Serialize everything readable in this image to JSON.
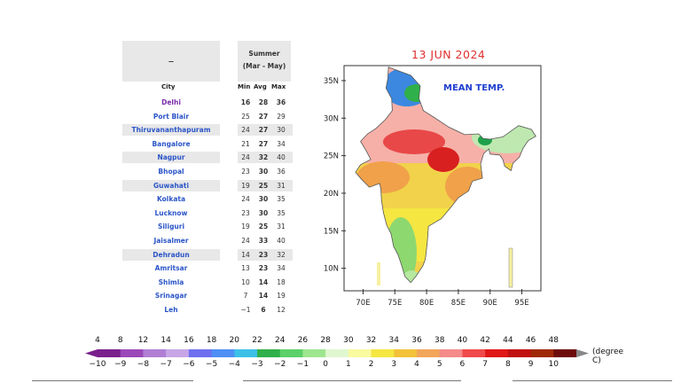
{
  "table": {
    "region_label": "–",
    "season_title": "Summer",
    "season_months": "(Mar - May)",
    "col_city": "City",
    "col_min": "Min",
    "col_avg": "Avg",
    "col_max": "Max",
    "rows": [
      {
        "city": "Delhi",
        "min": "16",
        "avg": "28",
        "max": "36"
      },
      {
        "city": "Port Blair",
        "min": "25",
        "avg": "27",
        "max": "29"
      },
      {
        "city": "Thiruvananthapuram",
        "min": "24",
        "avg": "27",
        "max": "30"
      },
      {
        "city": "Bangalore",
        "min": "21",
        "avg": "27",
        "max": "34"
      },
      {
        "city": "Nagpur",
        "min": "24",
        "avg": "32",
        "max": "40"
      },
      {
        "city": "Bhopal",
        "min": "23",
        "avg": "30",
        "max": "36"
      },
      {
        "city": "Guwahati",
        "min": "19",
        "avg": "25",
        "max": "31"
      },
      {
        "city": "Kolkata",
        "min": "24",
        "avg": "30",
        "max": "35"
      },
      {
        "city": "Lucknow",
        "min": "23",
        "avg": "30",
        "max": "35"
      },
      {
        "city": "Siliguri",
        "min": "19",
        "avg": "25",
        "max": "31"
      },
      {
        "city": "Jaisalmer",
        "min": "24",
        "avg": "33",
        "max": "40"
      },
      {
        "city": "Dehradun",
        "min": "14",
        "avg": "23",
        "max": "32"
      },
      {
        "city": "Amritsar",
        "min": "13",
        "avg": "23",
        "max": "34"
      },
      {
        "city": "Shimla",
        "min": "10",
        "avg": "14",
        "max": "18"
      },
      {
        "city": "Srinagar",
        "min": "7",
        "avg": "14",
        "max": "19"
      },
      {
        "city": "Leh",
        "min": "−1",
        "avg": "6",
        "max": "12"
      }
    ]
  },
  "map": {
    "date": "13 JUN 2024",
    "label": "MEAN TEMP.",
    "lat_labels": [
      "35N",
      "30N",
      "25N",
      "20N",
      "15N",
      "10N"
    ],
    "lon_labels": [
      "70E",
      "75E",
      "80E",
      "85E",
      "90E",
      "95E"
    ],
    "lon_range": [
      67,
      98
    ],
    "lat_range": [
      7,
      37
    ]
  },
  "colorbar": {
    "top_ticks": [
      "4",
      "8",
      "12",
      "14",
      "16",
      "18",
      "20",
      "22",
      "24",
      "26",
      "28",
      "30",
      "32",
      "34",
      "36",
      "38",
      "40",
      "42",
      "44",
      "46",
      "48"
    ],
    "bottom_ticks": [
      "−10",
      "−9",
      "−8",
      "−7",
      "−6",
      "−5",
      "−4",
      "−3",
      "−2",
      "−1",
      "0",
      "1",
      "2",
      "3",
      "4",
      "5",
      "6",
      "7",
      "8",
      "9",
      "10"
    ],
    "colors": [
      "#7a1f8c",
      "#9b49b8",
      "#b07fd4",
      "#c7a6e6",
      "#6f6ff0",
      "#4d8ff5",
      "#3cc0e8",
      "#2fb04a",
      "#5cd06a",
      "#9ee690",
      "#e0f7d0",
      "#fafaa0",
      "#f5e642",
      "#f3c23a",
      "#f2a65a",
      "#f48a8a",
      "#f04a4a",
      "#e01818",
      "#c01010",
      "#a02a08",
      "#6e0c0c"
    ],
    "unit_label": "(degree C)"
  }
}
